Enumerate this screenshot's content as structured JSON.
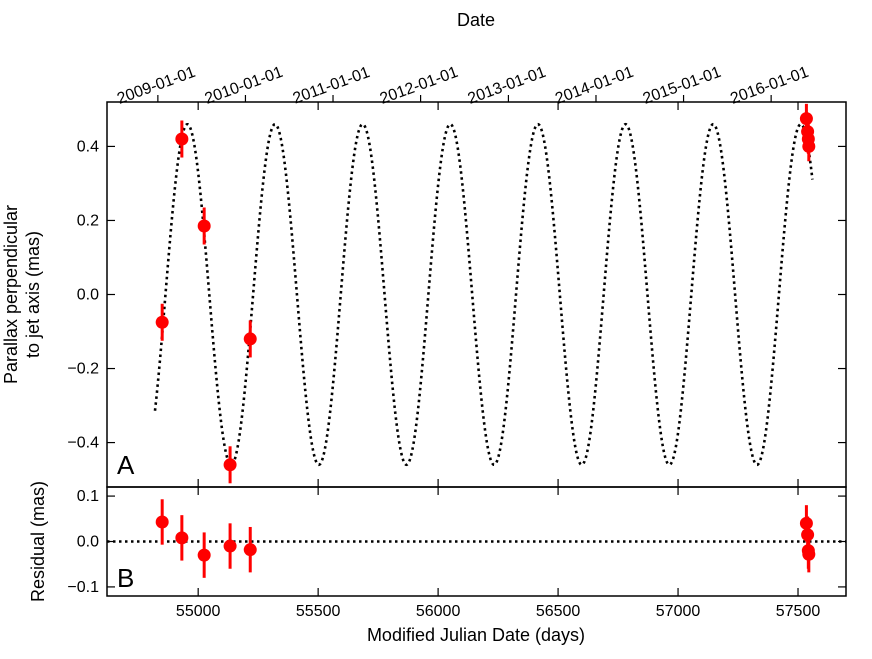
{
  "chart_data": {
    "type": "scatter",
    "top_axis_title": "Date",
    "top_ticks": [
      {
        "label": "2009-01-01",
        "mjd": 54832
      },
      {
        "label": "2010-01-01",
        "mjd": 55197
      },
      {
        "label": "2011-01-01",
        "mjd": 55562
      },
      {
        "label": "2012-01-01",
        "mjd": 55927
      },
      {
        "label": "2013-01-01",
        "mjd": 56293
      },
      {
        "label": "2014-01-01",
        "mjd": 56658
      },
      {
        "label": "2015-01-01",
        "mjd": 57023
      },
      {
        "label": "2016-01-01",
        "mjd": 57388
      }
    ],
    "xlabel": "Modified Julian Date (days)",
    "xlim": [
      54620,
      57700
    ],
    "xticks": [
      {
        "value": 55000,
        "label": "55000"
      },
      {
        "value": 55500,
        "label": "55500"
      },
      {
        "value": 56000,
        "label": "56000"
      },
      {
        "value": 56500,
        "label": "56500"
      },
      {
        "value": 57000,
        "label": "57000"
      },
      {
        "value": 57500,
        "label": "57500"
      }
    ],
    "model": {
      "name": "parallax model",
      "amplitude": 0.46,
      "period_days": 365.25,
      "peak_mjd": 54955,
      "start_mjd": 54820,
      "end_mjd": 57560
    },
    "panels": [
      {
        "label": "A",
        "ylabel_lines": [
          "Parallax perpendicular",
          "to jet axis (mas)"
        ],
        "ylim": [
          -0.52,
          0.52
        ],
        "yticks": [
          {
            "value": -0.4,
            "label": "−0.4"
          },
          {
            "value": -0.2,
            "label": "−0.2"
          },
          {
            "value": 0.0,
            "label": "0.0"
          },
          {
            "value": 0.2,
            "label": "0.2"
          },
          {
            "value": 0.4,
            "label": "0.4"
          }
        ],
        "points": [
          {
            "x": 54850,
            "y": -0.075,
            "err": 0.05
          },
          {
            "x": 54932,
            "y": 0.42,
            "err": 0.05
          },
          {
            "x": 55025,
            "y": 0.185,
            "err": 0.05
          },
          {
            "x": 55133,
            "y": -0.46,
            "err": 0.05
          },
          {
            "x": 55217,
            "y": -0.12,
            "err": 0.05
          },
          {
            "x": 57535,
            "y": 0.475,
            "err": 0.04
          },
          {
            "x": 57540,
            "y": 0.44,
            "err": 0.04
          },
          {
            "x": 57543,
            "y": 0.42,
            "err": 0.04
          },
          {
            "x": 57545,
            "y": 0.4,
            "err": 0.04
          }
        ]
      },
      {
        "label": "B",
        "ylabel_lines": [
          "Residual (mas)"
        ],
        "ylim": [
          -0.12,
          0.12
        ],
        "yticks": [
          {
            "value": -0.1,
            "label": "−0.1"
          },
          {
            "value": 0.0,
            "label": "0.0"
          },
          {
            "value": 0.1,
            "label": "0.1"
          }
        ],
        "points": [
          {
            "x": 54850,
            "y": 0.043,
            "err": 0.05
          },
          {
            "x": 54932,
            "y": 0.008,
            "err": 0.05
          },
          {
            "x": 55025,
            "y": -0.03,
            "err": 0.05
          },
          {
            "x": 55133,
            "y": -0.01,
            "err": 0.05
          },
          {
            "x": 55217,
            "y": -0.018,
            "err": 0.05
          },
          {
            "x": 57535,
            "y": 0.04,
            "err": 0.04
          },
          {
            "x": 57540,
            "y": 0.015,
            "err": 0.04
          },
          {
            "x": 57543,
            "y": -0.02,
            "err": 0.04
          },
          {
            "x": 57545,
            "y": -0.028,
            "err": 0.04
          }
        ]
      }
    ]
  }
}
